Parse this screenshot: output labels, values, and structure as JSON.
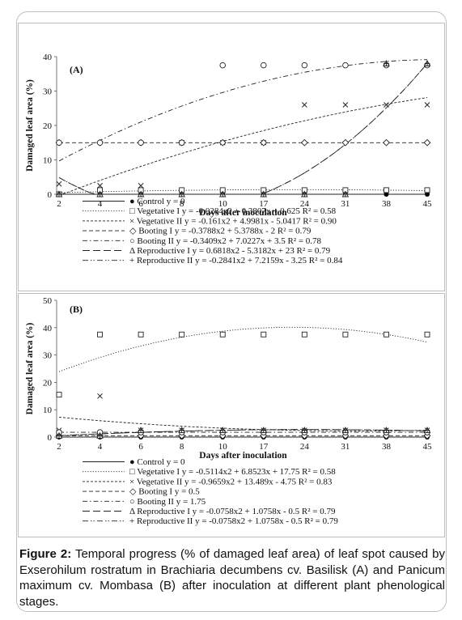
{
  "caption": {
    "label": "Figure 2:",
    "text": "Temporal progress (% of damaged leaf area) of leaf spot caused by Exserohilum rostratum in Brachiaria decumbens cv. Basilisk (A) and Panicum maximum cv. Mombasa (B) after inoculation at different plant phenological stages."
  },
  "chart_data": [
    {
      "panel": "(A)",
      "type": "scatter",
      "xlabel": "Days after inoculation",
      "ylabel": "Damaged leaf area (%)",
      "categories": [
        "2",
        "4",
        "6",
        "8",
        "10",
        "17",
        "24",
        "31",
        "38",
        "45"
      ],
      "ylim": [
        0,
        40
      ],
      "yticks": [
        0,
        10,
        20,
        30,
        40
      ],
      "grid": false,
      "legend_position": "bottom",
      "series": [
        {
          "name": "Control",
          "equation": "y = 0",
          "marker": "●",
          "line": "solid",
          "values": [
            0,
            0,
            0,
            0,
            0,
            0,
            0,
            0,
            0,
            0
          ]
        },
        {
          "name": "Vegetative I",
          "equation": "y = -0.0284x2 + 0.3807x + 0.625 R² = 0.58",
          "marker": "□",
          "line": "dotted",
          "values": [
            0,
            1.2,
            1.2,
            1.2,
            1.2,
            1.2,
            1.2,
            1.2,
            1.2,
            1.2
          ]
        },
        {
          "name": "Vegetative II",
          "equation": "y = -0.161x2 + 4.9981x - 5.0417 R² = 0.90",
          "marker": "×",
          "line": "dash-short",
          "values": [
            3,
            2.5,
            2.5,
            15,
            15,
            15,
            26,
            26,
            26,
            26
          ]
        },
        {
          "name": "Booting I",
          "equation": "y = -0.3788x2 + 5.3788x - 2 R² = 0.79",
          "marker": "◇",
          "line": "dashed",
          "values": [
            15,
            15,
            15,
            15,
            15,
            15,
            15,
            15,
            15,
            15
          ]
        },
        {
          "name": "Booting II",
          "equation": "y = -0.3409x2 + 7.0227x + 3.5 R² = 0.78",
          "marker": "○",
          "line": "dash-dot",
          "values": [
            15,
            15,
            15,
            15,
            37.5,
            37.5,
            37.5,
            37.5,
            37.5,
            37.5
          ]
        },
        {
          "name": "Reproductive I",
          "equation": "y = 0.6818x2 - 5.3182x + 23 R² = 0.79",
          "marker": "Δ",
          "line": "long-dash",
          "values": [
            0,
            0,
            0,
            0,
            0,
            0,
            0,
            0,
            38,
            38
          ]
        },
        {
          "name": "Reproductive II",
          "equation": "y = -0.2841x2 + 7.2159x - 3.25 R² = 0.84",
          "marker": "+",
          "line": "dash-dot-dot",
          "values": [
            0,
            0,
            0,
            0,
            0,
            0,
            0,
            0,
            38,
            38
          ]
        }
      ]
    },
    {
      "panel": "(B)",
      "type": "scatter",
      "xlabel": "Days after inoculation",
      "ylabel": "Damaged leaf area (%)",
      "categories": [
        "2",
        "4",
        "6",
        "8",
        "10",
        "17",
        "24",
        "31",
        "38",
        "45"
      ],
      "ylim": [
        0,
        50
      ],
      "yticks": [
        0,
        10,
        20,
        30,
        40,
        50
      ],
      "grid": false,
      "legend_position": "bottom",
      "series": [
        {
          "name": "Control",
          "equation": "y = 0",
          "marker": "●",
          "line": "solid",
          "values": [
            0,
            0,
            0,
            0,
            0,
            0,
            0,
            0,
            0,
            0
          ]
        },
        {
          "name": "Vegetative I",
          "equation": "y = -0.5114x2 + 6.8523x + 17.75 R² = 0.58",
          "marker": "□",
          "line": "dotted",
          "values": [
            15.5,
            37.5,
            37.5,
            37.5,
            37.5,
            37.5,
            37.5,
            37.5,
            37.5,
            37.5
          ]
        },
        {
          "name": "Vegetative II",
          "equation": "y = -0.9659x2 + 13.489x - 4.75 R² = 0.83",
          "marker": "×",
          "line": "dash-short",
          "values": [
            2.5,
            15,
            2.5,
            2.5,
            2.5,
            2.5,
            2.5,
            2.5,
            2.5,
            2.5
          ]
        },
        {
          "name": "Booting I",
          "equation": "y = 0.5",
          "marker": "◇",
          "line": "dashed",
          "values": [
            0.5,
            0.5,
            0.5,
            0.5,
            0.5,
            0.5,
            0.5,
            0.5,
            0.5,
            0.5
          ]
        },
        {
          "name": "Booting II",
          "equation": "y = 1.75",
          "marker": "○",
          "line": "dash-dot",
          "values": [
            1.75,
            1.75,
            1.75,
            1.75,
            1.75,
            1.75,
            1.75,
            1.75,
            1.75,
            1.75
          ]
        },
        {
          "name": "Reproductive I",
          "equation": "y = -0.0758x2 + 1.0758x - 0.5 R² = 0.79",
          "marker": "Δ",
          "line": "long-dash",
          "values": [
            0.5,
            0.5,
            2.5,
            2.5,
            2.5,
            2.5,
            2.5,
            2.5,
            2.5,
            2.5
          ]
        },
        {
          "name": "Reproductive II",
          "equation": "y = -0.0758x2 + 1.0758x - 0.5 R² = 0.79",
          "marker": "+",
          "line": "dash-dot-dot",
          "values": [
            0.5,
            0.5,
            2.5,
            2.5,
            2.5,
            2.5,
            2.5,
            2.5,
            2.5,
            2.5
          ]
        }
      ]
    }
  ]
}
